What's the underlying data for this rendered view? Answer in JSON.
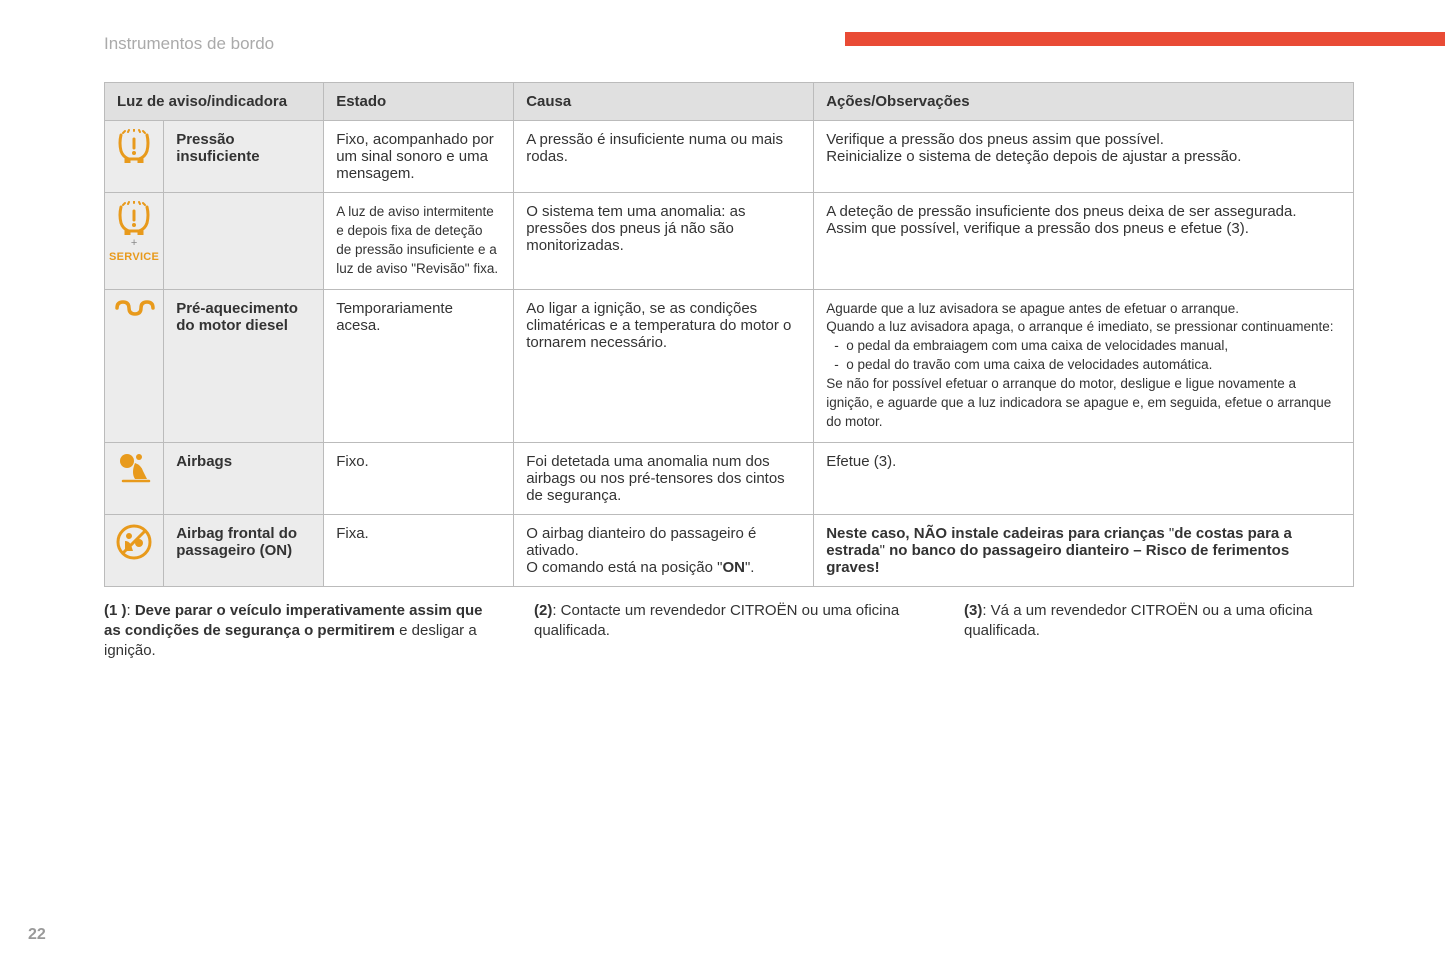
{
  "section_title": "Instrumentos de bordo",
  "page_number": "22",
  "accent_color": "#e94b35",
  "icon_color": "#e89a1c",
  "header_bg": "#e0e0e0",
  "columns": {
    "c1": "Luz de aviso/indicadora",
    "c2": "Estado",
    "c3": "Causa",
    "c4": "Ações/Observações"
  },
  "rows": [
    {
      "icon": "tpms",
      "label": "Pressão insuficiente",
      "estado": "Fixo, acompanhado por um sinal sonoro e uma mensagem.",
      "causa": "A pressão é insuficiente numa ou mais rodas.",
      "acoes": "Verifique a pressão dos pneus assim que possível.\nReinicialize o sistema de deteção depois de ajustar a pressão."
    },
    {
      "icon": "tpms-service",
      "label": "",
      "estado_small": "A luz de aviso intermitente e depois fixa de deteção de pressão insuficiente e a luz de aviso \"Revisão\" fixa.",
      "causa": "O sistema tem uma anomalia: as pressões dos pneus já não são monitorizadas.",
      "acoes": "A deteção de pressão insuficiente dos pneus deixa de ser assegurada.\nAssim que possível, verifique a pressão dos pneus e efetue (3).",
      "plus": "+",
      "service": "SERVICE"
    },
    {
      "icon": "glow-plug",
      "label": "Pré-aquecimento do motor diesel",
      "estado": "Temporariamente acesa.",
      "causa": "Ao ligar a ignição, se as condições climatéricas e a temperatura do motor o tornarem necessário.",
      "acoes_small_pre": "Aguarde que a luz avisadora se apague antes de efetuar o arranque.\nQuando a luz avisadora apaga, o arranque é imediato, se pressionar continuamente:",
      "acoes_bullets": [
        "o pedal da embraiagem com uma caixa de velocidades manual,",
        "o pedal do travão com uma caixa de velocidades automática."
      ],
      "acoes_small_post": "Se não for possível efetuar o arranque do motor, desligue e ligue novamente a ignição, e aguarde que a luz indicadora se apague e, em seguida, efetue o arranque do motor."
    },
    {
      "icon": "airbag",
      "label": "Airbags",
      "estado": "Fixo.",
      "causa": "Foi detetada uma anomalia num dos airbags ou nos pré-tensores dos cintos de segurança.",
      "acoes": "Efetue (3)."
    },
    {
      "icon": "airbag-on",
      "label": "Airbag frontal do passageiro (ON)",
      "estado": "Fixa.",
      "causa_html": "O airbag dianteiro do passageiro é ativado.\nO comando está na posição \"<b>ON</b>\".",
      "acoes_html": "<b>Neste caso, NÃO instale cadeiras para crianças</b> \"<b>de costas para a estrada</b>\" <b>no banco do passageiro dianteiro – Risco de ferimentos graves!</b>"
    }
  ],
  "footnotes": {
    "f1_html": "<b>(1 )</b>: <b>Deve parar o veículo imperativamente assim que as condições de segurança o permitirem</b> e desligar a ignição.",
    "f2_html": "<b>(2)</b>: Contacte um revendedor CITROËN ou uma oficina qualificada.",
    "f3_html": "<b>(3)</b>: Vá a um revendedor CITROËN ou a uma oficina qualificada."
  }
}
